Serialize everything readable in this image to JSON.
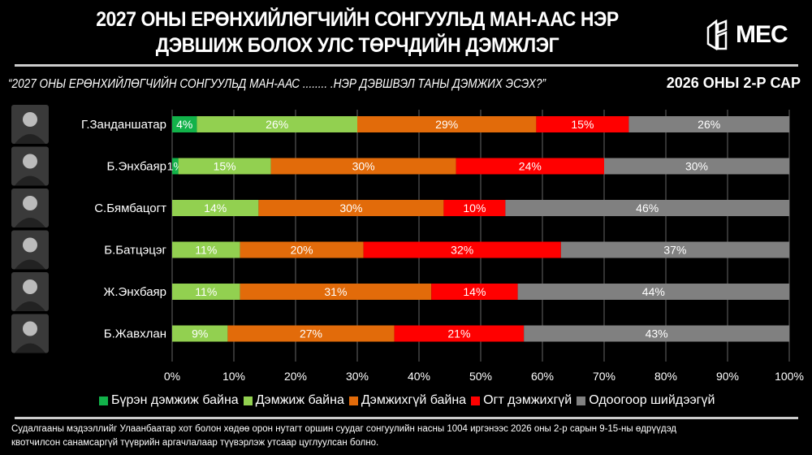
{
  "header": {
    "title_line1": "2027 ОНЫ ЕРӨНХИЙЛӨГЧИЙН СОНГУУЛЬД МАН-ААС НЭР",
    "title_line2": "ДЭВШИЖ БОЛОХ УЛС ТӨРЧДИЙН ДЭМЖЛЭГ",
    "logo_text": "MEC"
  },
  "question": "“2027 ОНЫ ЕРӨНХИЙЛӨГЧИЙН СОНГУУЛЬД МАН-ААС ........ .НЭР ДЭВШВЭЛ ТАНЫ ДЭМЖИХ ЭСЭХ?”",
  "period": "2026 ОНЫ 2-Р САР",
  "footnote_line1": "Судалгааны мэдээллийг Улаанбаатар хот болон хөдөө орон нутагт оршин суудаг сонгуулийн насны 1004 иргэнээс 2026 оны 2-р сарын 9-15-ны өдрүүдэд",
  "footnote_line2": "квотчилсон санамсаргүй түүврийн аргачлалаар түүвэрлэж утсаар цуглуулсан болно.",
  "chart_data": {
    "type": "bar",
    "orientation": "horizontal-stacked-100",
    "categories": [
      "Г.Занданшатар",
      "Б.Энхбаяр",
      "С.Бямбацогт",
      "Б.Батцэцэг",
      "Ж.Энхбаяр",
      "Б.Жавхлан"
    ],
    "series": [
      {
        "name": "Бүрэн дэмжиж байна",
        "color": "#12b24a",
        "values": [
          4,
          1,
          0,
          0,
          0,
          0
        ]
      },
      {
        "name": "Дэмжиж байна",
        "color": "#92d050",
        "values": [
          26,
          15,
          14,
          11,
          11,
          9
        ]
      },
      {
        "name": "Дэмжихгүй байна",
        "color": "#e26b0a",
        "values": [
          29,
          30,
          30,
          20,
          31,
          27
        ]
      },
      {
        "name": "Огт дэмжихгүй",
        "color": "#ff0000",
        "values": [
          15,
          24,
          10,
          32,
          14,
          21
        ]
      },
      {
        "name": "Одоогоор шийдээгүй",
        "color": "#808080",
        "values": [
          26,
          30,
          46,
          37,
          44,
          43
        ]
      }
    ],
    "xticks": [
      "0%",
      "10%",
      "20%",
      "30%",
      "40%",
      "50%",
      "60%",
      "70%",
      "80%",
      "90%",
      "100%"
    ],
    "xlim": [
      0,
      100
    ],
    "grid": true,
    "legend": "bottom"
  }
}
